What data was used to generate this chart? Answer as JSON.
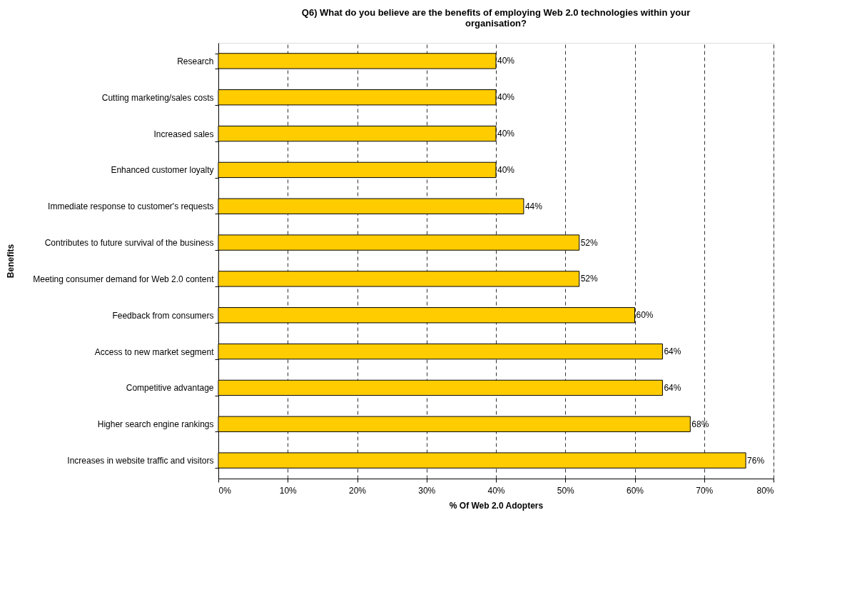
{
  "chart_data": {
    "type": "bar",
    "orientation": "horizontal",
    "title": "Q6) What do you believe are the benefits of employing Web 2.0 technologies within your organisation?",
    "xlabel": "% Of Web 2.0 Adopters",
    "ylabel": "Benefits",
    "categories": [
      "Research",
      "Cutting marketing/sales costs",
      "Increased sales",
      "Enhanced customer loyalty",
      "Immediate response to customer's requests",
      "Contributes to future survival of the business",
      "Meeting consumer demand for Web 2.0 content",
      "Feedback from consumers",
      "Access to new market segment",
      "Competitive advantage",
      "Higher search engine rankings",
      "Increases in website traffic and visitors"
    ],
    "values": [
      40,
      40,
      40,
      40,
      44,
      52,
      52,
      60,
      64,
      64,
      68,
      76
    ],
    "value_labels": [
      "40%",
      "40%",
      "40%",
      "40%",
      "44%",
      "52%",
      "52%",
      "60%",
      "64%",
      "64%",
      "68%",
      "76%"
    ],
    "color": "#ffcc00",
    "xlim": [
      0,
      80
    ],
    "xticks": [
      {
        "value": 0,
        "label": "0%"
      },
      {
        "value": 10,
        "label": "10%"
      },
      {
        "value": 20,
        "label": "20%"
      },
      {
        "value": 30,
        "label": "30%"
      },
      {
        "value": 40,
        "label": "40%"
      },
      {
        "value": 50,
        "label": "50%"
      },
      {
        "value": 60,
        "label": "60%"
      },
      {
        "value": 70,
        "label": "70%"
      },
      {
        "value": 80,
        "label": "80%"
      }
    ],
    "grid": "x"
  }
}
